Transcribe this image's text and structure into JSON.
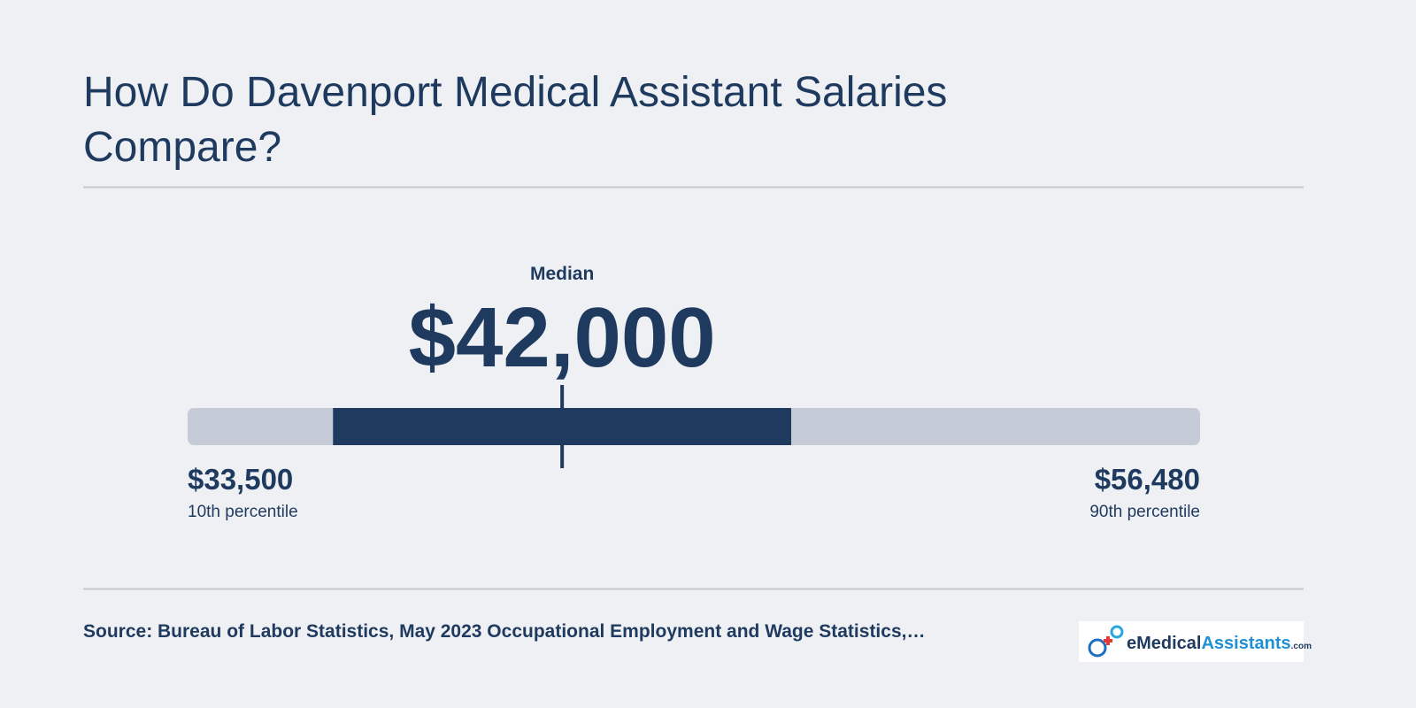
{
  "chart_data": {
    "type": "range",
    "title": "How Do Davenport Medical Assistant Salaries Compare?",
    "xlim": [
      33500,
      56480
    ],
    "low": {
      "value": 33500,
      "label": "$33,500",
      "caption": "10th percentile"
    },
    "high": {
      "value": 56480,
      "label": "$56,480",
      "caption": "90th percentile"
    },
    "median": {
      "value": 42000,
      "label": "$42,000",
      "caption": "Median"
    },
    "middle_range": [
      36800,
      47200
    ],
    "track_color": "#c5ccd7",
    "color": "#1f3a5f"
  },
  "footer": {
    "source": "Source: Bureau of Labor Statistics, May 2023 Occupational Employment and Wage Statistics,…",
    "logo": {
      "part1": "eMedical",
      "part2": "Assistants",
      "suffix": ".com"
    }
  }
}
